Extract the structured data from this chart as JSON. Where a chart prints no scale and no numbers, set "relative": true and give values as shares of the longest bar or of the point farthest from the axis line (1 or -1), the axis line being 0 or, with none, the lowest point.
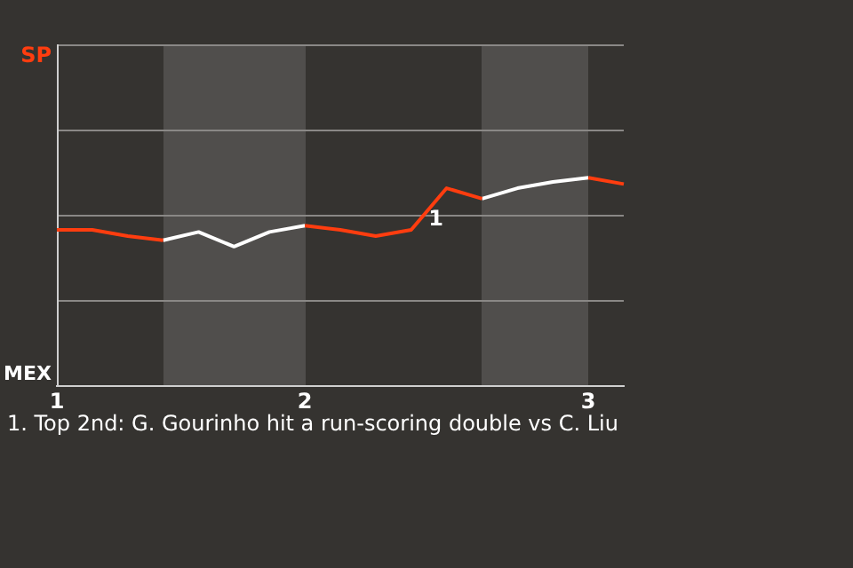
{
  "chart_data": {
    "type": "line",
    "relative": true,
    "categories": [
      "1",
      null,
      null,
      null,
      null,
      null,
      null,
      "2",
      null,
      null,
      null,
      null,
      null,
      null,
      null,
      "3",
      null
    ],
    "series": [
      {
        "color": "#ff3d0f",
        "values": [
          0.75,
          0.75,
          0.72,
          0.7,
          null,
          null,
          null,
          0.77,
          0.75,
          0.72,
          0.75,
          0.95,
          0.9,
          null,
          null,
          1,
          0.97
        ]
      },
      {
        "color": "#ffffff",
        "values": [
          null,
          null,
          null,
          0.7,
          0.74,
          0.67,
          0.74,
          0.77,
          null,
          null,
          null,
          null,
          0.9,
          0.95,
          0.98,
          1,
          null
        ]
      }
    ],
    "ref_lines": [
      {
        "axis": "y",
        "value": 0.41,
        "color": "#8a8886"
      },
      {
        "axis": "y",
        "value": 0.82,
        "color": "#8a8886"
      },
      {
        "axis": "y",
        "value": 1.23,
        "color": "#8a8886"
      },
      {
        "axis": "y",
        "value": 1.64,
        "color": "#8a8886"
      }
    ],
    "annotations": [
      "SP",
      "MEX",
      {
        "text": "1",
        "y": 0.95
      },
      "1. Top 2nd: G. Gourinho hit a run-scoring double vs C. Liu"
    ],
    "legend": false,
    "marker": "none",
    "line_style": "solid"
  }
}
